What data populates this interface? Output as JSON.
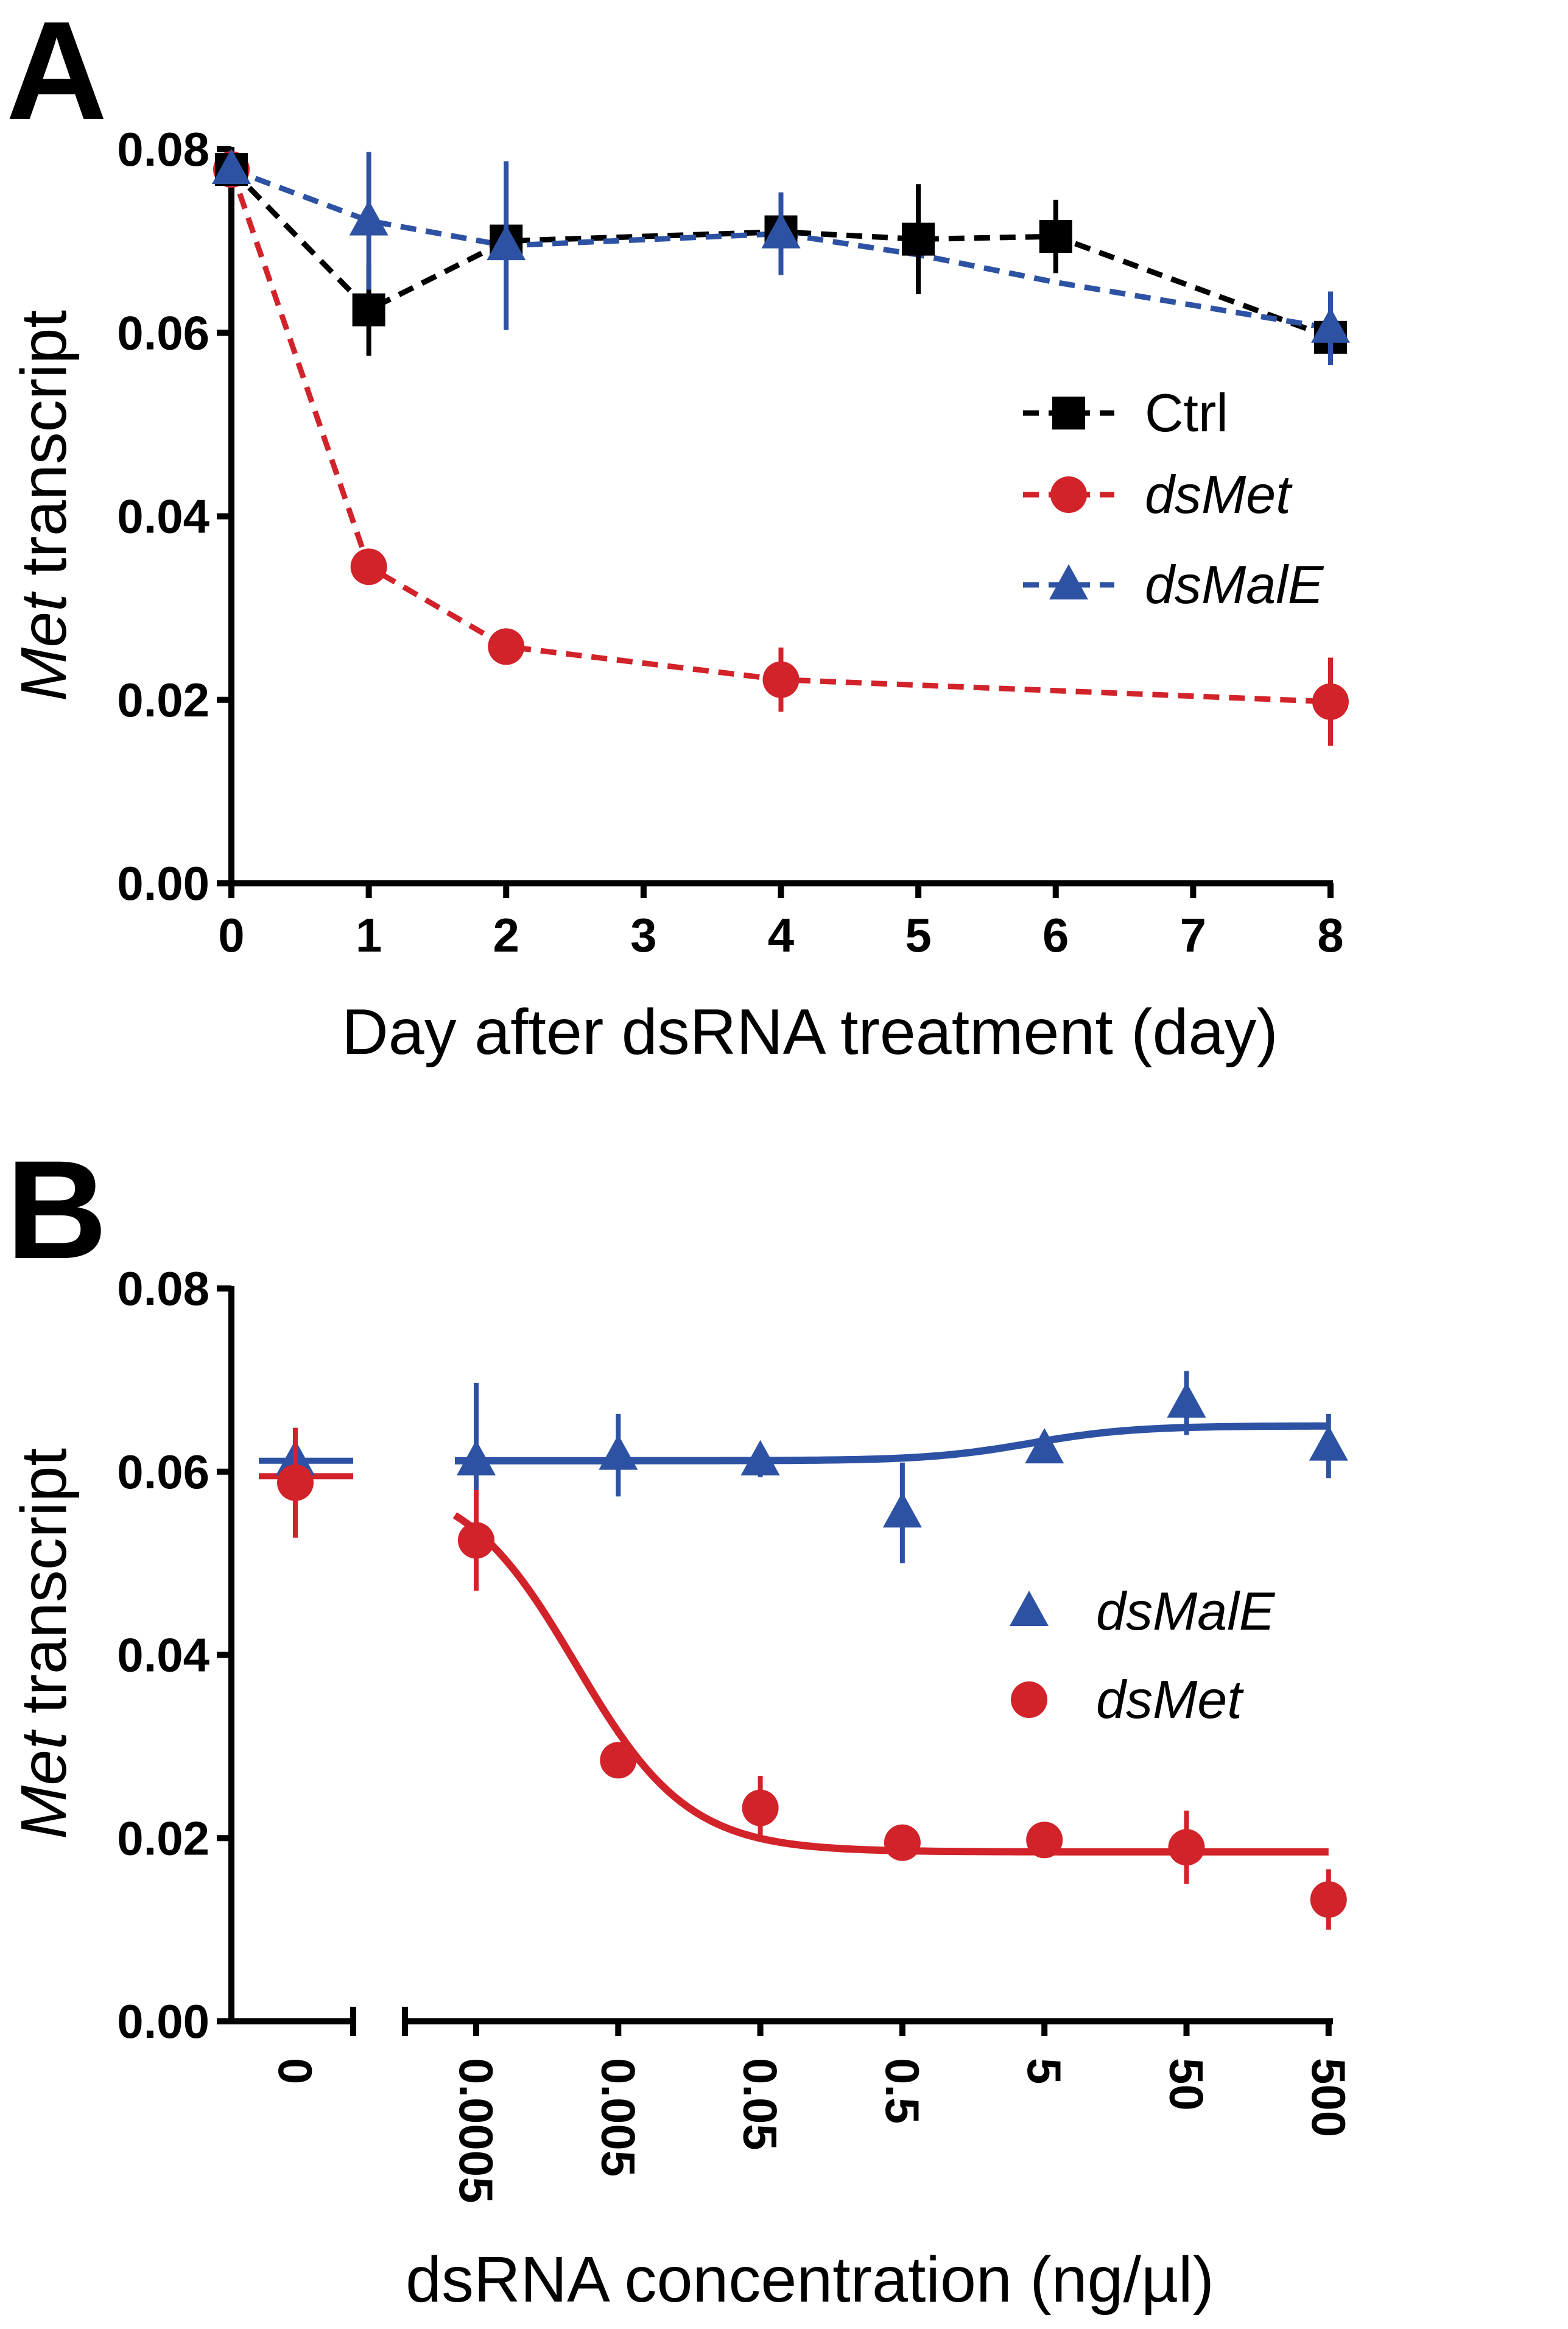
{
  "chart_data": [
    {
      "panel": "A",
      "type": "line",
      "title": "",
      "xlabel": "Day after dsRNA treatment (day)",
      "ylabel": {
        "italic": "Met",
        "rest": " transcript"
      },
      "x_ticks": [
        "0",
        "1",
        "2",
        "3",
        "4",
        "5",
        "6",
        "7",
        "8"
      ],
      "xlim": [
        0,
        8
      ],
      "y_ticks": [
        "0.00",
        "0.02",
        "0.04",
        "0.06",
        "0.08"
      ],
      "ylim": [
        0,
        0.08
      ],
      "grid": false,
      "legend_position": "right",
      "series": [
        {
          "name": "Ctrl",
          "italic": false,
          "color": "#000000",
          "marker": "square",
          "x": [
            0,
            1,
            2,
            4,
            5,
            6,
            8
          ],
          "y": [
            0.0778,
            0.0625,
            0.07,
            0.071,
            0.0702,
            0.0705,
            0.0595
          ],
          "err": [
            0.0012,
            0.005,
            0.001,
            0.001,
            0.006,
            0.004,
            0.002
          ]
        },
        {
          "name": "dsMet",
          "italic": true,
          "color": "#D2232A",
          "marker": "circle",
          "x": [
            0,
            1,
            2,
            4,
            8
          ],
          "y": [
            0.0778,
            0.0345,
            0.0258,
            0.0222,
            0.0198
          ],
          "err": [
            0.0008,
            0.0012,
            0.0008,
            0.0035,
            0.0048
          ]
        },
        {
          "name": "dsMalE",
          "italic": true,
          "color": "#2E52A3",
          "marker": "triangle",
          "x": [
            0,
            1,
            2,
            4,
            8
          ],
          "y": [
            0.0778,
            0.0722,
            0.0695,
            0.0708,
            0.0605
          ],
          "err": [
            0.001,
            0.0075,
            0.0092,
            0.0045,
            0.004
          ],
          "dashed_path_x": [
            0,
            1,
            2,
            4,
            5,
            6,
            8
          ],
          "dashed_path_y": [
            0.0778,
            0.0722,
            0.0695,
            0.0708,
            0.0685,
            0.0655,
            0.0605
          ]
        }
      ]
    },
    {
      "panel": "B",
      "type": "scatter",
      "title": "",
      "xlabel": "dsRNA concentration (ng/µl)",
      "ylabel": {
        "italic": "Met",
        "rest": " transcript"
      },
      "x_ticks": [
        "0",
        "0.0005",
        "0.005",
        "0.05",
        "0.5",
        "5",
        "50",
        "500"
      ],
      "x_scale": "log10 with axis break after 0",
      "y_ticks": [
        "0.00",
        "0.02",
        "0.04",
        "0.06",
        "0.08"
      ],
      "ylim": [
        0,
        0.08
      ],
      "grid": false,
      "legend_position": "right",
      "series": [
        {
          "name": "dsMalE",
          "italic": true,
          "color": "#2E52A3",
          "marker": "triangle",
          "x": [
            "0",
            "0.0005",
            "0.005",
            "0.05",
            "0.5",
            "5",
            "50",
            "500"
          ],
          "y": [
            0.0612,
            0.0612,
            0.0618,
            0.0612,
            0.0555,
            0.0625,
            0.0675,
            0.0628
          ],
          "err": [
            0.0005,
            0.0085,
            0.0045,
            0.0018,
            0.0055,
            0.0008,
            0.0035,
            0.0035
          ],
          "fit": "sigmoid",
          "fit_bottom": 0.0612,
          "fit_top": 0.065,
          "fit_log_ec50": 0.6,
          "fit_hill": 1.2
        },
        {
          "name": "dsMet",
          "italic": true,
          "color": "#D2232A",
          "marker": "circle",
          "x": [
            "0",
            "0.0005",
            "0.005",
            "0.05",
            "0.5",
            "5",
            "50",
            "500"
          ],
          "y": [
            0.0588,
            0.0525,
            0.0285,
            0.0233,
            0.0195,
            0.0198,
            0.019,
            0.0133
          ],
          "err": [
            0.006,
            0.0055,
            0.001,
            0.0035,
            0.0005,
            0.0005,
            0.004,
            0.0033
          ],
          "fit": "sigmoid",
          "fit_top": 0.0595,
          "fit_bottom": 0.0185,
          "fit_log_ec50": -2.6,
          "fit_hill": -1.1
        }
      ]
    }
  ]
}
